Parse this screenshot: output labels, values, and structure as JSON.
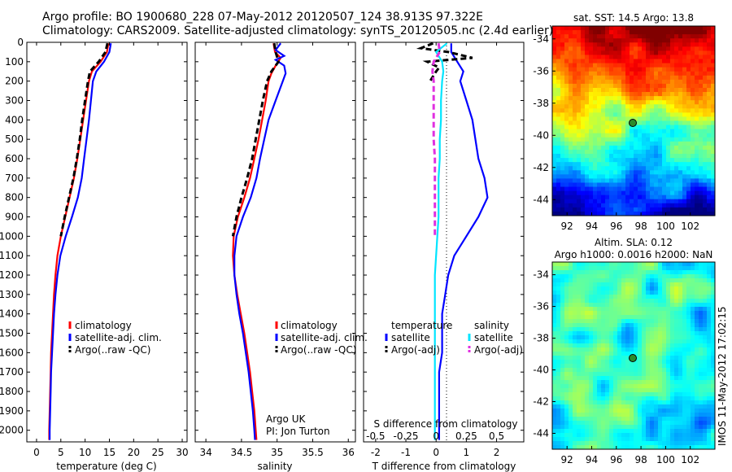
{
  "header": {
    "line1": "Argo profile: BO 1900680_228 07-May-2012 20120507_124 38.913S 97.322E",
    "line2": "Climatology: CARS2009. Satellite-adjusted climatology: synTS_20120505.nc (2.4d earlier)"
  },
  "side_stamp": "IMOS 11-May-2012 17:02:15",
  "colors": {
    "climatology": "#ff0000",
    "satellite": "#0000ff",
    "argo": "#000000",
    "salinity_satellite": "#00e5ff",
    "salinity_argo": "#e030e0"
  },
  "chart_data": [
    {
      "type": "line",
      "id": "temperature",
      "xlabel": "temperature (deg C)",
      "ylabel": "",
      "xlim": [
        -2,
        31
      ],
      "ylim": [
        2060,
        0
      ],
      "xticks": [
        0,
        5,
        10,
        15,
        20,
        25,
        30
      ],
      "yticks": [
        0,
        100,
        200,
        300,
        400,
        500,
        600,
        700,
        800,
        900,
        1000,
        1100,
        1200,
        1300,
        1400,
        1500,
        1600,
        1700,
        1800,
        1900,
        2000
      ],
      "legend": [
        "climatology",
        "satellite-adj. clim.",
        "Argo(..raw -QC)"
      ],
      "series": [
        {
          "name": "climatology",
          "color": "#ff0000",
          "dashed": false,
          "depth": [
            5,
            50,
            100,
            150,
            200,
            300,
            400,
            500,
            600,
            700,
            800,
            900,
            1000,
            1100,
            1200,
            1300,
            1400,
            1500,
            1600,
            1700,
            1800,
            1900,
            2000,
            2050
          ],
          "value": [
            14.8,
            14.5,
            13.2,
            11.4,
            10.8,
            10.2,
            9.6,
            9.0,
            8.4,
            7.7,
            6.8,
            5.9,
            5.0,
            4.3,
            3.9,
            3.6,
            3.4,
            3.2,
            3.0,
            2.9,
            2.8,
            2.7,
            2.6,
            2.6
          ]
        },
        {
          "name": "satellite-adj. clim.",
          "color": "#0000ff",
          "dashed": false,
          "depth": [
            5,
            50,
            100,
            150,
            200,
            300,
            400,
            500,
            600,
            700,
            800,
            900,
            1000,
            1100,
            1200,
            1300,
            1400,
            1500,
            1600,
            1700,
            1800,
            1900,
            2000,
            2050
          ],
          "value": [
            15.3,
            15.0,
            13.9,
            12.3,
            11.6,
            11.2,
            10.8,
            10.3,
            9.8,
            9.3,
            8.5,
            7.3,
            6.0,
            4.9,
            4.3,
            3.9,
            3.6,
            3.4,
            3.2,
            3.0,
            2.9,
            2.8,
            2.7,
            2.7
          ]
        },
        {
          "name": "Argo(..raw -QC)",
          "color": "#000000",
          "dashed": true,
          "depth": [
            5,
            50,
            100,
            150,
            200,
            300,
            400,
            500,
            600,
            700,
            800,
            900,
            1000
          ],
          "value": [
            14.6,
            14.2,
            12.8,
            11.0,
            10.6,
            10.0,
            9.4,
            8.9,
            8.3,
            7.6,
            6.7,
            5.8,
            5.0
          ]
        }
      ]
    },
    {
      "type": "line",
      "id": "salinity",
      "xlabel": "salinity",
      "ylabel": "",
      "xlim": [
        33.85,
        36.1
      ],
      "ylim": [
        2060,
        0
      ],
      "xticks": [
        34,
        34.5,
        35,
        35.5,
        36
      ],
      "legend": [
        "climatology",
        "satellite-adj. clim.",
        "Argo(..raw -QC)"
      ],
      "annotation": [
        "Argo UK",
        "PI: Jon Turton"
      ],
      "series": [
        {
          "name": "climatology",
          "color": "#ff0000",
          "dashed": false,
          "depth": [
            5,
            50,
            80,
            120,
            160,
            200,
            300,
            400,
            500,
            600,
            700,
            800,
            900,
            1000,
            1100,
            1200,
            1300,
            1400,
            1500,
            1600,
            1700,
            1800,
            1900,
            2000,
            2050
          ],
          "value": [
            34.95,
            34.97,
            35.05,
            34.98,
            34.92,
            34.88,
            34.84,
            34.79,
            34.74,
            34.68,
            34.62,
            34.54,
            34.45,
            34.39,
            34.38,
            34.4,
            34.44,
            34.49,
            34.54,
            34.58,
            34.62,
            34.65,
            34.68,
            34.7,
            34.71
          ]
        },
        {
          "name": "satellite-adj. clim.",
          "color": "#0000ff",
          "dashed": false,
          "depth": [
            5,
            40,
            70,
            90,
            120,
            160,
            200,
            300,
            400,
            500,
            600,
            700,
            800,
            900,
            1000,
            1100,
            1200,
            1300,
            1400,
            1500,
            1600,
            1700,
            1800,
            1900,
            2000,
            2050
          ],
          "value": [
            35.05,
            34.98,
            35.1,
            34.98,
            35.1,
            35.12,
            35.08,
            34.98,
            34.88,
            34.82,
            34.76,
            34.71,
            34.63,
            34.52,
            34.43,
            34.4,
            34.4,
            34.43,
            34.47,
            34.52,
            34.56,
            34.6,
            34.63,
            34.66,
            34.68,
            34.69
          ]
        },
        {
          "name": "Argo(..raw -QC)",
          "color": "#000000",
          "dashed": true,
          "depth": [
            5,
            50,
            100,
            150,
            200,
            300,
            400,
            500,
            600,
            700,
            800,
            900,
            1000
          ],
          "value": [
            34.96,
            34.98,
            35.02,
            34.92,
            34.86,
            34.8,
            34.75,
            34.7,
            34.65,
            34.58,
            34.5,
            34.43,
            34.38
          ]
        }
      ]
    },
    {
      "type": "line",
      "id": "difference",
      "xlabel": "T difference from climatology",
      "xlabel_top": "S difference from climatology",
      "xlim": [
        -2.4,
        2.9
      ],
      "ylim": [
        2060,
        0
      ],
      "xticks": [
        -2,
        -1,
        0,
        1,
        2
      ],
      "s_ticks": [
        -0.5,
        -0.25,
        0,
        0.25,
        0.5
      ],
      "legend_groups": [
        {
          "title": "temperature",
          "items": [
            "satellite",
            "Argo(-adj)"
          ]
        },
        {
          "title": "salinity",
          "items": [
            "satellite",
            "Argo(-adj)"
          ]
        }
      ],
      "series": [
        {
          "name": "temperature satellite",
          "color": "#0000ff",
          "dashed": false,
          "depth": [
            5,
            50,
            100,
            150,
            200,
            300,
            400,
            500,
            600,
            700,
            800,
            900,
            1000,
            1100,
            1200,
            1300,
            1400,
            1500,
            1600,
            1700,
            1800,
            1900,
            2000,
            2050
          ],
          "value": [
            0.5,
            0.5,
            0.7,
            0.9,
            0.8,
            1.0,
            1.2,
            1.3,
            1.4,
            1.6,
            1.7,
            1.4,
            1.0,
            0.6,
            0.4,
            0.3,
            0.2,
            0.2,
            0.2,
            0.1,
            0.1,
            0.1,
            0.1,
            0.1
          ]
        },
        {
          "name": "temperature Argo(-adj)",
          "color": "#000000",
          "dashed": true,
          "depth": [
            5,
            30,
            50,
            80,
            100,
            130,
            150,
            200
          ],
          "value": [
            -0.1,
            -0.5,
            0.4,
            1.2,
            -0.3,
            0.1,
            0.0,
            -0.2
          ]
        },
        {
          "name": "salinity satellite",
          "color": "#00e5ff",
          "dashed": false,
          "depth": [
            5,
            50,
            100,
            150,
            200,
            300,
            400,
            500,
            600,
            700,
            800,
            900,
            1000,
            1100,
            1200,
            1300,
            1400,
            1500,
            1600,
            1700,
            1800,
            1900,
            2000,
            2050
          ],
          "value": [
            0.09,
            0.0,
            0.05,
            0.06,
            0.05,
            0.04,
            0.04,
            0.03,
            0.03,
            0.02,
            0.02,
            0.02,
            0.01,
            0.0,
            -0.01,
            -0.01,
            -0.01,
            -0.01,
            -0.01,
            -0.01,
            -0.01,
            -0.01,
            -0.01,
            -0.01
          ]
        },
        {
          "name": "salinity Argo(-adj)",
          "color": "#e030e0",
          "dashed": true,
          "depth": [
            5,
            50,
            100,
            150,
            200,
            300,
            400,
            500,
            600,
            700,
            800,
            900,
            1000
          ],
          "value": [
            0.02,
            0.03,
            -0.02,
            -0.03,
            -0.02,
            -0.02,
            -0.02,
            -0.02,
            -0.01,
            -0.01,
            -0.01,
            -0.01,
            -0.01
          ]
        }
      ]
    },
    {
      "type": "heatmap",
      "id": "sst-map",
      "title": "sat. SST: 14.5 Argo: 13.8",
      "xlim": [
        90.8,
        104
      ],
      "ylim": [
        -45,
        -33.2
      ],
      "xticks": [
        92,
        94,
        96,
        98,
        100,
        102
      ],
      "yticks": [
        -34,
        -36,
        -38,
        -40,
        -42,
        -44
      ],
      "marker": {
        "lon": 97.322,
        "lat": -38.913
      }
    },
    {
      "type": "heatmap",
      "id": "sla-map",
      "title_lines": [
        "Altim. SLA: 0.12",
        "Argo h1000: 0.0016 h2000: NaN"
      ],
      "xlim": [
        90.8,
        104
      ],
      "ylim": [
        -45,
        -33.2
      ],
      "xticks": [
        92,
        94,
        96,
        98,
        100,
        102
      ],
      "yticks": [
        -34,
        -36,
        -38,
        -40,
        -42,
        -44
      ],
      "marker": {
        "lon": 97.322,
        "lat": -38.913
      }
    }
  ]
}
